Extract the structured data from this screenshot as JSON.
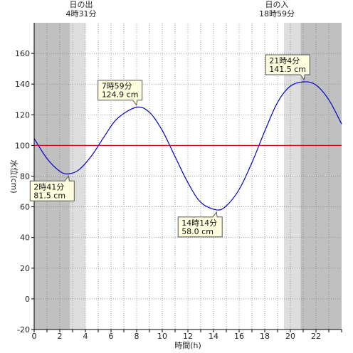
{
  "chart_data": {
    "type": "line",
    "xlabel": "時間(h)",
    "ylabel": "水位(cm)",
    "xlim": [
      0,
      24
    ],
    "ylim": [
      -20,
      180
    ],
    "x_ticks": [
      0,
      2,
      4,
      6,
      8,
      10,
      12,
      14,
      16,
      18,
      20,
      22
    ],
    "y_ticks": [
      -20,
      0,
      20,
      40,
      60,
      80,
      100,
      120,
      140,
      160
    ],
    "reference_line": {
      "value": 100,
      "color": "#e00000"
    },
    "sunrise": {
      "label": "日の出",
      "time": "4時31分",
      "hour": 4.5167
    },
    "sunset": {
      "label": "日の入",
      "time": "18時59分",
      "hour": 18.9833
    },
    "twilight_shading": {
      "night_color": "#c0c0c0",
      "twilight_color": "#dedede",
      "morning_dark_end": 2.8,
      "morning_twilight_end": 4.0,
      "evening_twilight_start": 19.5,
      "evening_dark_start": 20.8
    },
    "series": [
      {
        "color": "#0000cc",
        "x": [
          0,
          1,
          2,
          2.683,
          3.5,
          4.5,
          5.5,
          6.5,
          7.983,
          9,
          10,
          11,
          12,
          13,
          14.233,
          15,
          16,
          17,
          18,
          19,
          20,
          21.067,
          22,
          23,
          24
        ],
        "y": [
          104.5,
          91.5,
          83.2,
          81.5,
          84.2,
          93.5,
          106.2,
          117.6,
          124.9,
          121.6,
          109.8,
          92.7,
          75.8,
          63.0,
          58.0,
          60.6,
          71.3,
          88.8,
          109.3,
          128.1,
          138.7,
          141.5,
          139.4,
          129.8,
          114.0
        ]
      }
    ],
    "annotations": [
      {
        "time": "2時41分",
        "value": "81.5 cm",
        "x": 2.683,
        "y": 81.5
      },
      {
        "time": "7時59分",
        "value": "124.9 cm",
        "x": 7.983,
        "y": 124.9
      },
      {
        "time": "14時14分",
        "value": "58.0 cm",
        "x": 14.233,
        "y": 58.0
      },
      {
        "time": "21時4分",
        "value": "141.5 cm",
        "x": 21.067,
        "y": 141.5
      }
    ]
  }
}
